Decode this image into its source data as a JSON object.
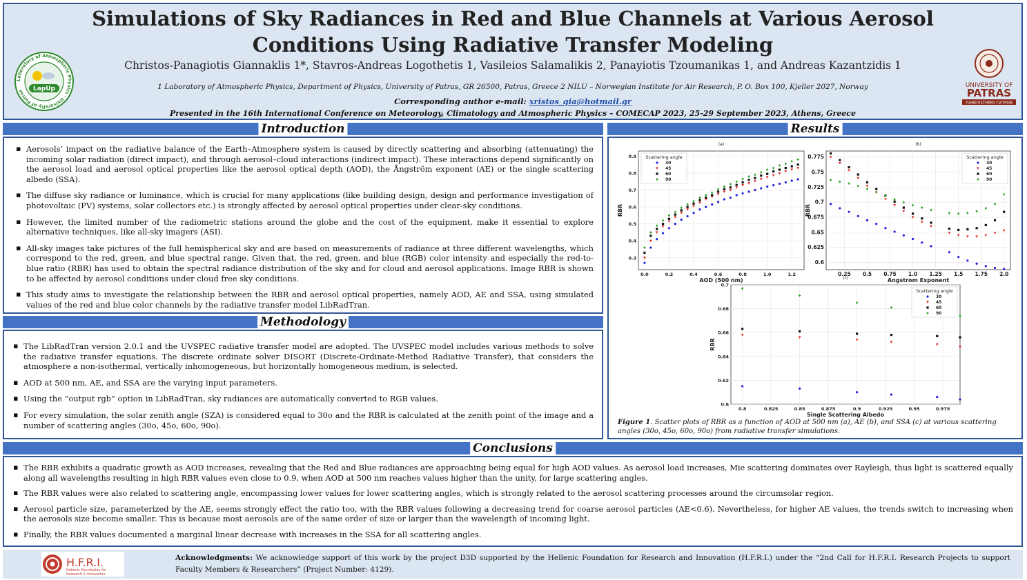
{
  "header": {
    "title": "Simulations of Sky Radiances in Red and Blue Channels at Various Aerosol Conditions Using Radiative Transfer Modeling",
    "authors": "Christos-Panagiotis Giannaklis 1*, Stavros-Andreas Logothetis 1, Vasileios Salamalikis  2, Panayiotis Tzoumanikas 1, and Andreas Kazantzidis 1",
    "affiliations": "1 Laboratory of Atmospheric Physics, Department of Physics, University of Patras, GR 26500,  Patras, Greece   2 NILU – Norwegian Institute for Air Research, P. O. Box 100, Kjeller 2027, Norway",
    "corresponding_label": "Corresponding author e-mail: ",
    "corresponding_email": "xristos_gia@hotmail.gr",
    "presented": "Presented in the 16th International Conference on Meteorology, Climatology and Atmospheric Physics – COMECAP 2023,  25-29 September 2023, Athens, Greece",
    "lapup_logo_text": "LapUp",
    "lapup_ring_text": "Laboratory of Atmospheric Physics · University of Patras",
    "patras_logo_line1": "UNIVERSITY OF",
    "patras_logo_line2": "PATRAS",
    "patras_logo_line3": "ΠΑΝΕΠΙΣΤΗΜΙΟ ΠΑΤΡΩΝ"
  },
  "introduction": {
    "title": "Introduction",
    "items": [
      "Aerosols’ impact on the radiative balance of the Earth–Atmosphere system is caused by directly scattering and absorbing (attenuating) the incoming solar radiation (direct impact), and through aerosol–cloud interactions (indirect impact). These interactions depend significantly on the aerosol load and aerosol optical properties like the aerosol optical depth (AOD), the Ångström exponent (AE) or the single scattering albedo (SSA).",
      "The diffuse sky radiance or luminance, which is crucial for many applications (like building design, design and performance investigation of photovoltaic (PV) systems, solar collectors etc.) is strongly affected by aerosol optical properties under clear-sky conditions.",
      "However, the limited number of the radiometric stations around the globe and the cost of the equipment, make it essential to explore alternative techniques, like all-sky imagers (ASI).",
      "All-sky images take pictures of the full hemispherical sky and are based on measurements of radiance at three different wavelengths, which correspond to the red, green, and blue spectral range. Given that, the red, green, and blue (RGB) color intensity and especially the red-to-blue ratio (RBR) has used to obtain the spectral radiance distribution of the sky and for cloud and aerosol applications. Image RBR is shown to be affected by aerosol conditions under cloud free sky conditions.",
      "This study aims to investigate the relationship between the RBR and aerosol optical properties, namely AOD, AE and SSA, using simulated values of the red and blue color channels by the radiative transfer model LibRadTran."
    ]
  },
  "methodology": {
    "title": "Methodology",
    "items": [
      "The LibRadTran version 2.0.1 and the UVSPEC radiative transfer model are adopted. The UVSPEC model includes various methods to solve the radiative transfer equations. The discrete ordinate solver DISORT (Discrete-Ordinate-Method Radiative Transfer), that considers the atmosphere a non-isothermal, vertically inhomogeneous, but horizontally homogeneous medium, is selected.",
      "AOD at 500 nm, AE, and SSA are the varying input parameters.",
      "Using the “output rgb” option in LibRadTran, sky radiances are automatically converted to RGB values.",
      "For every simulation, the solar zenith angle (SZA) is considered equal to 30o and the RBR is calculated at the zenith point of the image and a number of scattering angles (30o, 45o, 60o, 90o)."
    ]
  },
  "results": {
    "title": "Results",
    "caption_label": "Figure 1",
    "caption_text": ". Scatter plots of RBR as a function of AOD at 500 nm (a), AE (b), and SSA (c) at various scattering angles (30o, 45o, 60o, 90o) from radiative transfer simulations."
  },
  "conclusions": {
    "title": "Conclusions",
    "items": [
      "The RBR exhibits a quadratic growth as AOD increases, revealing that the Red and Blue radiances are approaching being equal for high AOD values. As aerosol load increases, Mie scattering dominates over Rayleigh, thus light is scattered equally along all wavelengths resulting in high RBR values even close to 0.9, when AOD at 500 nm reaches values higher than the unity, for large scattering angles.",
      "The RBR values were also related to scattering angle, encompassing lower values for lower scattering angles, which is strongly related to the aerosol scattering processes around the circumsolar region.",
      "Aerosol particle size, parameterized by the AE, seems strongly effect the ratio too, with the RBR values following a decreasing trend for coarse aerosol particles (AE<0.6). Nevertheless, for higher AE values, the trends switch to increasing when the aerosols size become smaller. This is because most aerosols are of the same order of size or larger than the wavelength of incoming light.",
      "Finally, the RBR values documented a marginal linear decrease with increases in the SSA for all scattering angles."
    ]
  },
  "acknowledgments": {
    "label": "Acknowledgments:",
    "text": " We acknowledge support of this work by the project D3D supported by the Hellenic Foundation for Research and Innovation (H.F.R.I.) under the “2nd Call for H.F.R.I. Research Projects to support Faculty Members & Researchers” (Project Number: 4129).",
    "logo_text": "H.F.R.I.",
    "logo_sub1": "Hellenic Foundation for",
    "logo_sub2": "Research & Innovation"
  },
  "colors": {
    "s30": "#1f1fe0",
    "s45": "#e21f1f",
    "s60": "#111111",
    "s90": "#1fa01f",
    "accent": "#4472c4"
  },
  "chart_data": [
    {
      "type": "scatter",
      "panel": "(a)",
      "xlabel": "AOD (500 nm)",
      "ylabel": "RBR",
      "xlim": [
        -0.05,
        1.3
      ],
      "ylim": [
        0.23,
        0.93
      ],
      "xticks": [
        0.0,
        0.2,
        0.4,
        0.6,
        0.8,
        1.0,
        1.2
      ],
      "yticks": [
        0.3,
        0.4,
        0.5,
        0.6,
        0.7,
        0.8,
        0.9
      ],
      "legend_title": "Scattering angle",
      "x": [
        0.0,
        0.05,
        0.1,
        0.15,
        0.2,
        0.25,
        0.3,
        0.35,
        0.4,
        0.45,
        0.5,
        0.55,
        0.6,
        0.65,
        0.7,
        0.75,
        0.8,
        0.85,
        0.9,
        0.95,
        1.0,
        1.05,
        1.1,
        1.15,
        1.2,
        1.25
      ],
      "series": [
        {
          "name": "30",
          "marker": "circle",
          "values": [
            0.27,
            0.36,
            0.41,
            0.445,
            0.475,
            0.5,
            0.525,
            0.545,
            0.565,
            0.585,
            0.6,
            0.615,
            0.63,
            0.645,
            0.655,
            0.67,
            0.68,
            0.69,
            0.7,
            0.71,
            0.72,
            0.728,
            0.737,
            0.745,
            0.755,
            0.763
          ]
        },
        {
          "name": "45",
          "marker": "triangle",
          "values": [
            0.3,
            0.4,
            0.45,
            0.485,
            0.515,
            0.54,
            0.565,
            0.585,
            0.605,
            0.625,
            0.645,
            0.66,
            0.675,
            0.69,
            0.7,
            0.715,
            0.728,
            0.74,
            0.752,
            0.765,
            0.776,
            0.787,
            0.798,
            0.81,
            0.82,
            0.83
          ]
        },
        {
          "name": "60",
          "marker": "square",
          "values": [
            0.33,
            0.43,
            0.47,
            0.5,
            0.53,
            0.555,
            0.58,
            0.6,
            0.62,
            0.64,
            0.655,
            0.67,
            0.69,
            0.705,
            0.715,
            0.73,
            0.745,
            0.76,
            0.77,
            0.785,
            0.795,
            0.81,
            0.82,
            0.83,
            0.84,
            0.85
          ]
        },
        {
          "name": "90",
          "marker": "diamond",
          "values": [
            0.36,
            0.45,
            0.49,
            0.52,
            0.55,
            0.57,
            0.595,
            0.615,
            0.635,
            0.655,
            0.67,
            0.685,
            0.705,
            0.72,
            0.735,
            0.75,
            0.765,
            0.78,
            0.79,
            0.805,
            0.82,
            0.83,
            0.845,
            0.855,
            0.87,
            0.88
          ]
        }
      ]
    },
    {
      "type": "scatter",
      "panel": "(b)",
      "xlabel": "Angstrom Exponent",
      "ylabel": "RBR",
      "xlim": [
        0.05,
        2.07
      ],
      "ylim": [
        0.588,
        0.785
      ],
      "xticks": [
        0.25,
        0.5,
        0.75,
        1.0,
        1.25,
        1.5,
        1.75,
        2.0
      ],
      "yticks": [
        0.6,
        0.625,
        0.65,
        0.675,
        0.7,
        0.725,
        0.75,
        0.775
      ],
      "legend_title": "Scattering angle",
      "x": [
        0.1,
        0.2,
        0.3,
        0.4,
        0.5,
        0.6,
        0.7,
        0.8,
        0.9,
        1.0,
        1.1,
        1.2,
        1.4,
        1.5,
        1.6,
        1.7,
        1.8,
        1.9,
        2.0
      ],
      "series": [
        {
          "name": "30",
          "marker": "circle",
          "values": [
            0.697,
            0.69,
            0.684,
            0.677,
            0.67,
            0.664,
            0.657,
            0.651,
            0.645,
            0.639,
            0.633,
            0.627,
            0.617,
            0.609,
            0.603,
            0.598,
            0.594,
            0.591,
            0.589
          ]
        },
        {
          "name": "45",
          "marker": "triangle",
          "values": [
            0.775,
            0.765,
            0.753,
            0.74,
            0.727,
            0.716,
            0.705,
            0.695,
            0.685,
            0.675,
            0.667,
            0.66,
            0.649,
            0.645,
            0.643,
            0.643,
            0.645,
            0.649,
            0.653
          ]
        },
        {
          "name": "60",
          "marker": "square",
          "values": [
            0.781,
            0.77,
            0.758,
            0.746,
            0.733,
            0.722,
            0.711,
            0.701,
            0.691,
            0.681,
            0.673,
            0.666,
            0.656,
            0.654,
            0.655,
            0.657,
            0.662,
            0.67,
            0.684
          ]
        },
        {
          "name": "90",
          "marker": "diamond",
          "values": [
            0.737,
            0.734,
            0.731,
            0.727,
            0.722,
            0.717,
            0.711,
            0.705,
            0.7,
            0.695,
            0.691,
            0.687,
            0.682,
            0.681,
            0.682,
            0.685,
            0.69,
            0.697,
            0.713
          ]
        }
      ]
    },
    {
      "type": "scatter",
      "panel": "(c)",
      "xlabel": "Single Scattering Albedo",
      "ylabel": "RBR",
      "xlim": [
        0.79,
        0.99
      ],
      "ylim": [
        0.6,
        0.7
      ],
      "xticks": [
        0.8,
        0.825,
        0.85,
        0.875,
        0.9,
        0.925,
        0.95,
        0.975
      ],
      "yticks": [
        0.6,
        0.62,
        0.64,
        0.66,
        0.68,
        0.7
      ],
      "legend_title": "Scattering angle",
      "x": [
        0.8,
        0.85,
        0.9,
        0.93,
        0.97,
        0.99
      ],
      "series": [
        {
          "name": "30",
          "marker": "circle",
          "values": [
            0.615,
            0.613,
            0.61,
            0.608,
            0.606,
            0.604
          ]
        },
        {
          "name": "45",
          "marker": "triangle",
          "values": [
            0.658,
            0.656,
            0.654,
            0.652,
            0.65,
            0.648
          ]
        },
        {
          "name": "60",
          "marker": "square",
          "values": [
            0.663,
            0.661,
            0.659,
            0.658,
            0.657,
            0.656
          ]
        },
        {
          "name": "90",
          "marker": "diamond",
          "values": [
            0.697,
            0.691,
            0.685,
            0.681,
            0.677,
            0.674
          ]
        }
      ]
    }
  ]
}
